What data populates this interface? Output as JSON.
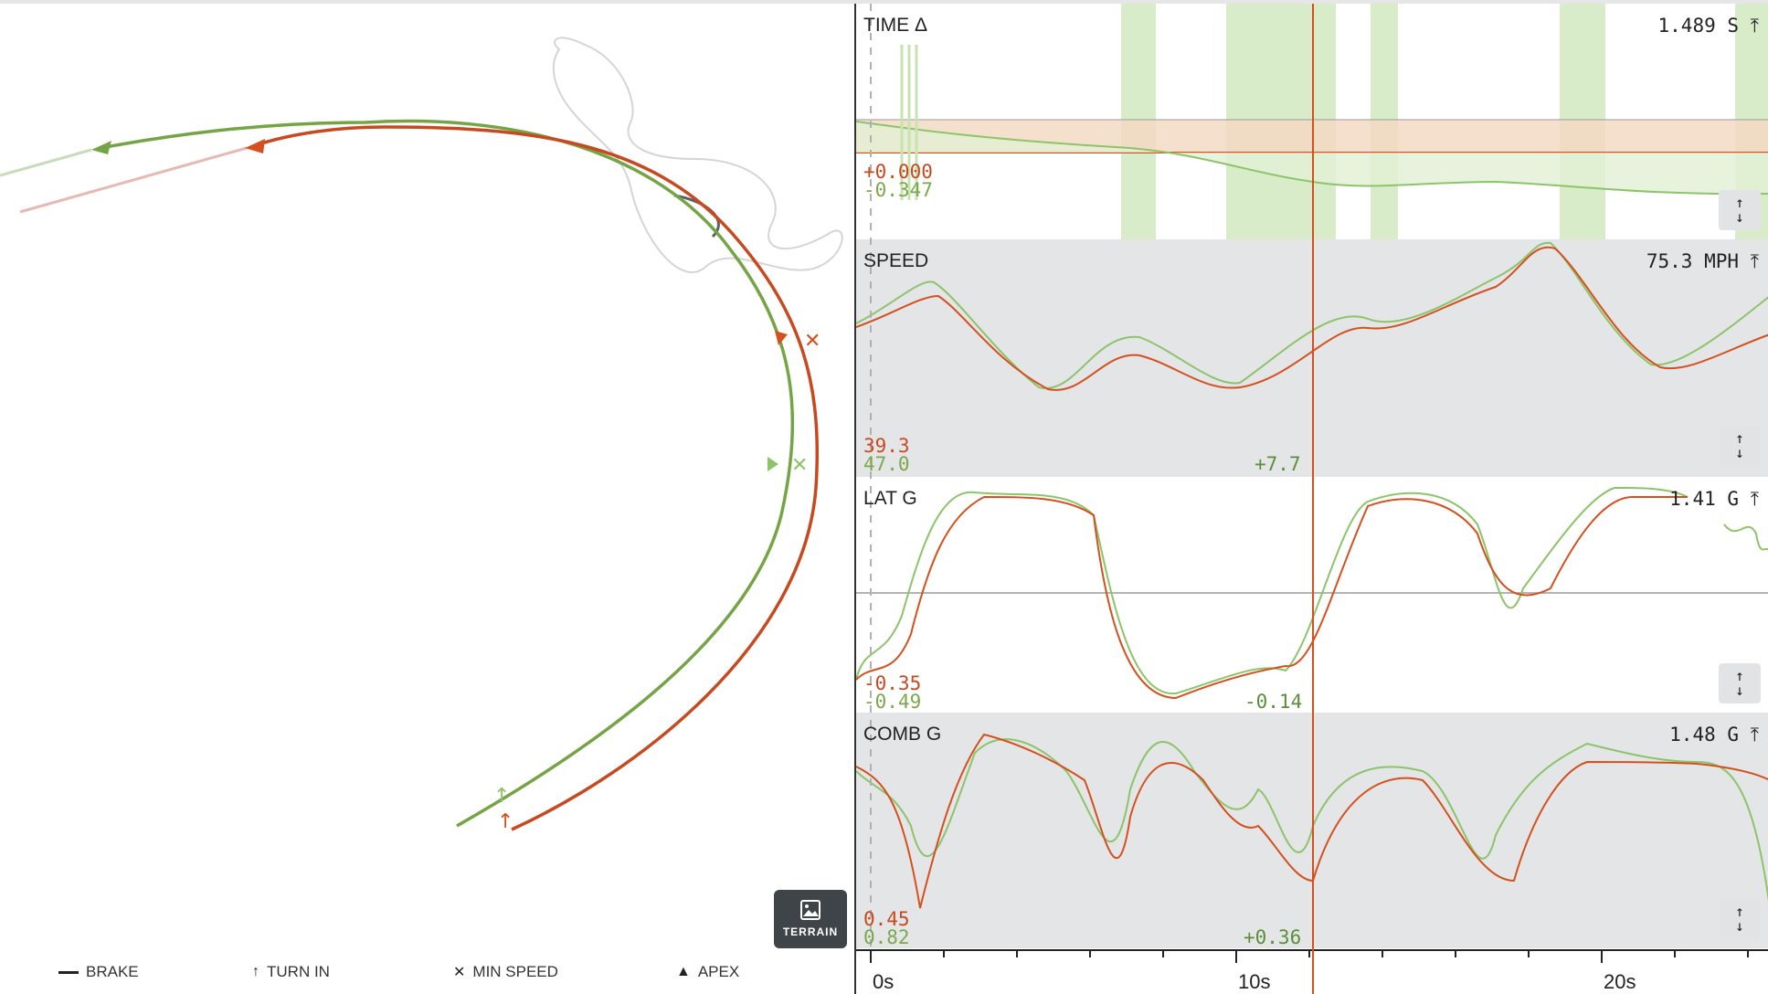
{
  "legend": {
    "brake": "BRAKE",
    "turn_in": "TURN IN",
    "min_speed": "MIN SPEED",
    "apex": "APEX"
  },
  "terrain_button": {
    "label": "TERRAIN",
    "icon": "image-icon"
  },
  "colors": {
    "lap_a": "#d4501e",
    "lap_b": "#74a444",
    "lap_b_light": "#c8e3b0",
    "panel_gray": "#e4e5e7"
  },
  "panels": [
    {
      "id": "time",
      "label": "TIME Δ",
      "value": "1.489",
      "unit": "S",
      "min_red": "+0.000",
      "min_green": "-0.347",
      "delta": ""
    },
    {
      "id": "speed",
      "label": "SPEED",
      "value": "75.3",
      "unit": "MPH",
      "min_red": "39.3",
      "min_green": "47.0",
      "delta": "+7.7"
    },
    {
      "id": "latg",
      "label": "LAT G",
      "value": "1.41",
      "unit": "G",
      "min_red": "-0.35",
      "min_green": "-0.49",
      "delta": "-0.14"
    },
    {
      "id": "combg",
      "label": "COMB G",
      "value": "1.48",
      "unit": "G",
      "min_red": "0.45",
      "min_green": "0.82",
      "delta": "+0.36"
    }
  ],
  "x_axis": {
    "ticks": [
      "0s",
      "10s",
      "20s"
    ]
  },
  "cursor_time_s": 12.1
}
